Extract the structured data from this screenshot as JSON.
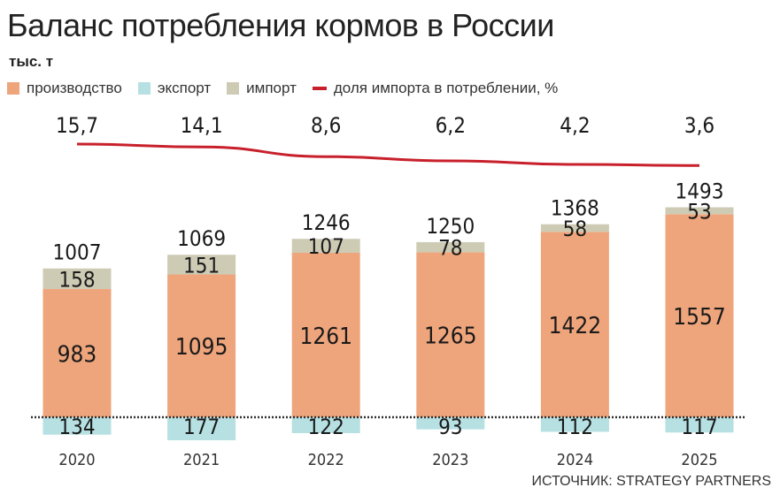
{
  "chart_data": {
    "type": "bar",
    "title": "Баланс потребления кормов в России",
    "unit": "тыс. т",
    "categories": [
      "2020",
      "2021",
      "2022",
      "2023",
      "2024",
      "2025"
    ],
    "series": [
      {
        "name": "производство",
        "values": [
          983,
          1095,
          1261,
          1265,
          1422,
          1557
        ],
        "color": "#EFA57C"
      },
      {
        "name": "экспорт",
        "values": [
          134,
          177,
          122,
          93,
          112,
          117
        ],
        "color": "#B6E0E2",
        "negative": true
      },
      {
        "name": "импорт",
        "values": [
          158,
          151,
          107,
          78,
          58,
          53
        ],
        "color": "#CECBB5"
      }
    ],
    "line": {
      "name": "доля импорта в потреблении, %",
      "values": [
        15.7,
        14.1,
        8.6,
        6.2,
        4.2,
        3.6
      ],
      "labels": [
        "15,7",
        "14,1",
        "8,6",
        "6,2",
        "4,2",
        "3,6"
      ],
      "color": "#C8202B"
    },
    "totals": [
      1007,
      1069,
      1246,
      1250,
      1368,
      1493
    ],
    "legend_position": "top-left",
    "grid": false
  },
  "source": "ИСТОЧНИК: STRATEGY PARTNERS"
}
